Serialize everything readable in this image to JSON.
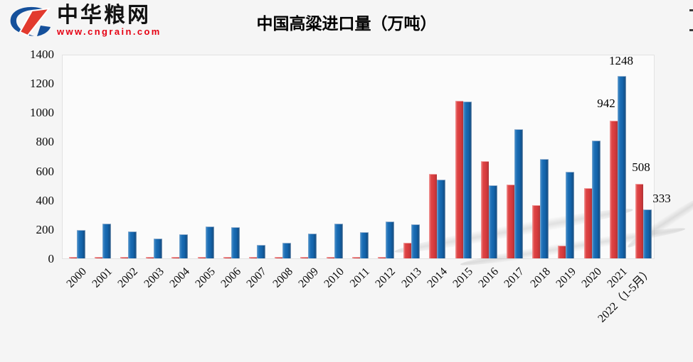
{
  "header": {
    "brand_name": "中华粮网",
    "brand_url": "www.cngrain.com",
    "title": "中国高粱进口量（万吨）"
  },
  "chart_data": {
    "type": "bar",
    "title": "中国高粱进口量（万吨）",
    "unit": "万吨",
    "ylim": [
      0,
      1400
    ],
    "yticks": [
      0,
      200,
      400,
      600,
      800,
      1000,
      1200,
      1400
    ],
    "grid": false,
    "legend_position": "clipped-off-right",
    "categories": [
      "2000",
      "2001",
      "2002",
      "2003",
      "2004",
      "2005",
      "2006",
      "2007",
      "2008",
      "2009",
      "2010",
      "2011",
      "2012",
      "2013",
      "2014",
      "2015",
      "2016",
      "2017",
      "2018",
      "2019",
      "2020",
      "2021",
      "2022（1-5月）"
    ],
    "series": [
      {
        "name": "red",
        "color": "#d93c3e",
        "values": [
          8,
          8,
          8,
          8,
          8,
          8,
          8,
          8,
          8,
          8,
          8,
          8,
          8,
          108,
          578,
          1078,
          665,
          506,
          365,
          88,
          481,
          942,
          508
        ]
      },
      {
        "name": "blue",
        "color": "#1463a9",
        "values": [
          195,
          237,
          186,
          136,
          164,
          218,
          214,
          91,
          109,
          170,
          237,
          178,
          253,
          234,
          541,
          1073,
          500,
          886,
          682,
          593,
          808,
          1248,
          333
        ]
      }
    ],
    "data_labels": [
      {
        "text": "1248",
        "series": "blue",
        "category": "2021"
      },
      {
        "text": "942",
        "series": "red",
        "category": "2021"
      },
      {
        "text": "508",
        "series": "red",
        "category": "2022（1-5月）"
      },
      {
        "text": "333",
        "series": "blue",
        "category": "2022（1-5月）"
      }
    ]
  }
}
